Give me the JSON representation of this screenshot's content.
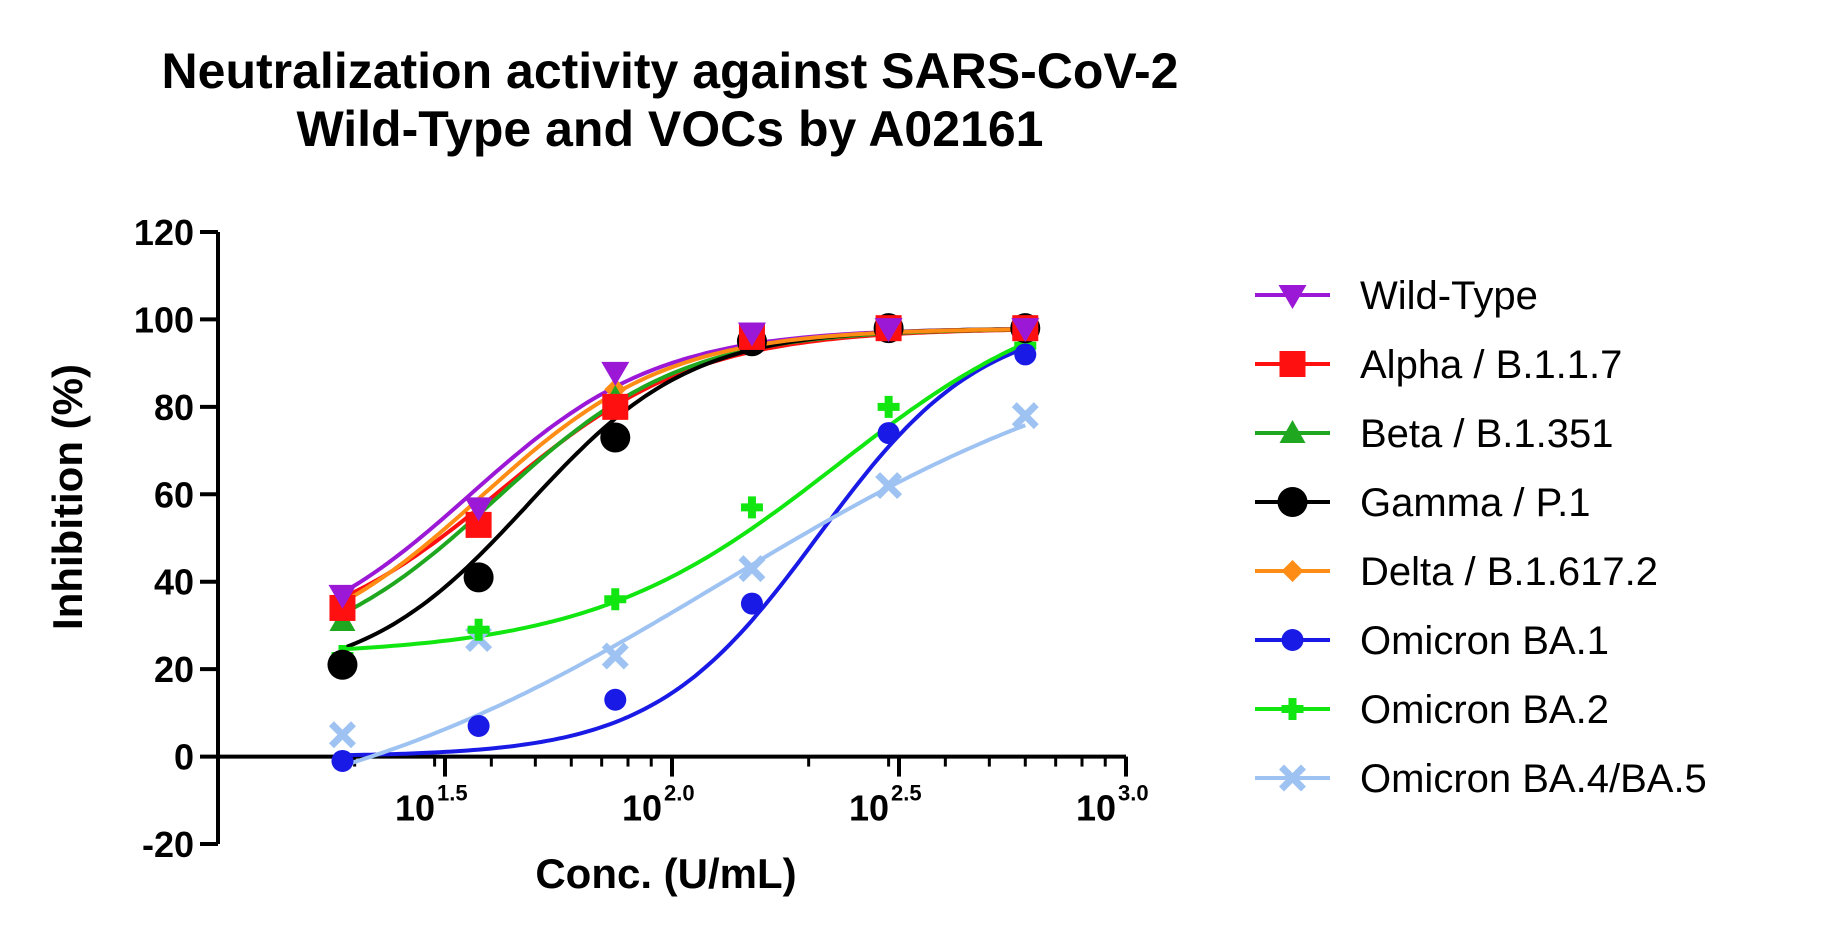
{
  "chart_data": {
    "type": "line",
    "title": [
      "Neutralization activity against SARS-CoV-2",
      "Wild-Type and VOCs by A02161"
    ],
    "xlabel": "Conc. (U/mL)",
    "ylabel": "Inhibition (%)",
    "xscale": "log10",
    "xlim": [
      10,
      1000
    ],
    "ylim": [
      -20,
      120
    ],
    "yticks": [
      "-20",
      "0",
      "20",
      "40",
      "60",
      "80",
      "100",
      "120"
    ],
    "xticks": [
      {
        "base": "10",
        "exp": "1.5"
      },
      {
        "base": "10",
        "exp": "2.0"
      },
      {
        "base": "10",
        "exp": "2.5"
      },
      {
        "base": "10",
        "exp": "3.0"
      }
    ],
    "grid": false,
    "legend_position": "right",
    "x": [
      18.8,
      37.5,
      75,
      150,
      300,
      600
    ],
    "series": [
      {
        "name": "Wild-Type",
        "marker": "triangle-down",
        "color": "#9B18D6",
        "values": [
          37,
          57,
          88,
          97,
          98,
          98
        ],
        "fit": {
          "bottom": 22,
          "top": 98,
          "ec50": 36,
          "hill": 2.1
        }
      },
      {
        "name": "Alpha / B.1.1.7",
        "marker": "square",
        "color": "#FF1010",
        "values": [
          34,
          53,
          80,
          96,
          98,
          98
        ],
        "fit": {
          "bottom": 24,
          "top": 98,
          "ec50": 42,
          "hill": 2.0
        }
      },
      {
        "name": "Beta / B.1.351",
        "marker": "triangle-up",
        "color": "#1FA81F",
        "values": [
          31,
          53,
          82,
          96,
          98,
          98
        ],
        "fit": {
          "bottom": 20,
          "top": 98,
          "ec50": 41,
          "hill": 2.1
        }
      },
      {
        "name": "Gamma / P.1",
        "marker": "circle",
        "color": "#000000",
        "values": [
          21,
          41,
          73,
          95,
          98,
          98
        ],
        "fit": {
          "bottom": 17,
          "top": 98,
          "ec50": 48,
          "hill": 2.4
        }
      },
      {
        "name": "Delta / B.1.617.2",
        "marker": "diamond",
        "color": "#FF8C14",
        "values": [
          35,
          55,
          84,
          96,
          98,
          98
        ],
        "fit": {
          "bottom": 21,
          "top": 98,
          "ec50": 38,
          "hill": 2.1
        }
      },
      {
        "name": "Omicron BA.1",
        "marker": "circle-small",
        "color": "#1A1AE6",
        "values": [
          -1,
          7,
          13,
          35,
          74,
          92
        ],
        "fit": {
          "bottom": 0,
          "top": 101,
          "ec50": 210,
          "hill": 2.4
        }
      },
      {
        "name": "Omicron BA.2",
        "marker": "plus",
        "color": "#11E611",
        "values": [
          23,
          29,
          36,
          57,
          80,
          94
        ],
        "fit": {
          "bottom": 23,
          "top": 110,
          "ec50": 230,
          "hill": 1.6
        }
      },
      {
        "name": "Omicron BA.4/BA.5",
        "marker": "x",
        "color": "#9EC3F2",
        "values": [
          5,
          27,
          23,
          43,
          62,
          78
        ],
        "fit": {
          "bottom": -20,
          "top": 100,
          "ec50": 130,
          "hill": 0.9
        }
      }
    ]
  }
}
